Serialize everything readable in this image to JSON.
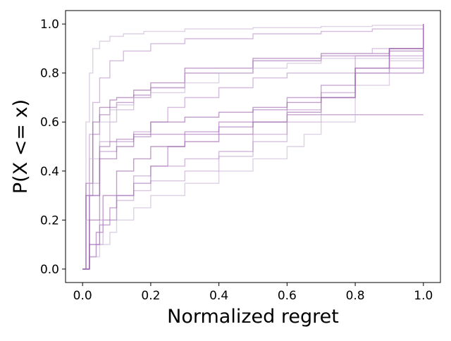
{
  "chart_data": {
    "type": "line",
    "title": "",
    "xlabel": "Normalized regret",
    "ylabel": "P(X <= x)",
    "xlim": [
      -0.05,
      1.05
    ],
    "ylim": [
      -0.055,
      1.055
    ],
    "xticks": [
      {
        "value": 0.0,
        "label": "0.0"
      },
      {
        "value": 0.2,
        "label": "0.2"
      },
      {
        "value": 0.4,
        "label": "0.4"
      },
      {
        "value": 0.6,
        "label": "0.6"
      },
      {
        "value": 0.8,
        "label": "0.8"
      },
      {
        "value": 1.0,
        "label": "1.0"
      }
    ],
    "yticks": [
      {
        "value": 0.0,
        "label": "0.0"
      },
      {
        "value": 0.2,
        "label": "0.2"
      },
      {
        "value": 0.4,
        "label": "0.4"
      },
      {
        "value": 0.6,
        "label": "0.6"
      },
      {
        "value": 0.8,
        "label": "0.8"
      },
      {
        "value": 1.0,
        "label": "1.0"
      }
    ],
    "grid": false,
    "legend": "none",
    "line_style": "step",
    "series_colors": [
      "#c8b4d4",
      "#b98fc9",
      "#a46bb8",
      "#9a5fa9",
      "#c0a0cc"
    ],
    "series": [
      {
        "x": [
          0.0,
          0.01,
          0.02,
          0.03,
          0.05,
          0.08,
          0.12,
          0.18,
          0.3,
          0.5,
          0.7,
          0.85,
          1.0
        ],
        "values": [
          0.0,
          0.6,
          0.8,
          0.9,
          0.93,
          0.95,
          0.96,
          0.97,
          0.98,
          0.985,
          0.99,
          0.995,
          1.0
        ]
      },
      {
        "x": [
          0.0,
          0.01,
          0.02,
          0.03,
          0.05,
          0.08,
          0.12,
          0.2,
          0.3,
          0.5,
          0.7,
          0.85,
          1.0
        ],
        "values": [
          0.0,
          0.3,
          0.55,
          0.68,
          0.78,
          0.85,
          0.89,
          0.92,
          0.94,
          0.96,
          0.97,
          0.98,
          1.0
        ]
      },
      {
        "x": [
          0.0,
          0.01,
          0.03,
          0.05,
          0.08,
          0.1,
          0.15,
          0.2,
          0.3,
          0.5,
          0.7,
          0.9,
          1.0
        ],
        "values": [
          0.0,
          0.3,
          0.55,
          0.63,
          0.66,
          0.68,
          0.71,
          0.74,
          0.8,
          0.85,
          0.87,
          0.9,
          1.0
        ]
      },
      {
        "x": [
          0.0,
          0.01,
          0.03,
          0.05,
          0.08,
          0.1,
          0.15,
          0.2,
          0.3,
          0.5,
          0.7,
          0.9,
          1.0
        ],
        "values": [
          0.0,
          0.35,
          0.6,
          0.66,
          0.69,
          0.7,
          0.73,
          0.76,
          0.82,
          0.86,
          0.88,
          0.89,
          1.0
        ]
      },
      {
        "x": [
          0.0,
          0.01,
          0.02,
          0.05,
          0.08,
          0.1,
          0.15,
          0.2,
          0.3,
          0.5,
          0.7,
          0.85,
          1.0
        ],
        "values": [
          0.0,
          0.2,
          0.35,
          0.52,
          0.6,
          0.65,
          0.7,
          0.74,
          0.8,
          0.85,
          0.88,
          0.9,
          1.0
        ]
      },
      {
        "x": [
          0.0,
          0.02,
          0.05,
          0.08,
          0.1,
          0.15,
          0.2,
          0.3,
          0.4,
          0.5,
          0.6,
          0.7,
          1.0
        ],
        "values": [
          0.0,
          0.45,
          0.6,
          0.65,
          0.67,
          0.7,
          0.72,
          0.76,
          0.8,
          0.82,
          0.84,
          0.86,
          1.0
        ]
      },
      {
        "x": [
          0.0,
          0.02,
          0.05,
          0.1,
          0.15,
          0.2,
          0.25,
          0.3,
          0.4,
          0.5,
          0.6,
          0.8,
          1.0
        ],
        "values": [
          0.0,
          0.3,
          0.48,
          0.52,
          0.56,
          0.6,
          0.66,
          0.7,
          0.74,
          0.78,
          0.8,
          0.87,
          1.0
        ]
      },
      {
        "x": [
          0.0,
          0.02,
          0.05,
          0.08,
          0.1,
          0.15,
          0.2,
          0.3,
          0.4,
          0.5,
          0.6,
          1.0
        ],
        "values": [
          0.0,
          0.3,
          0.5,
          0.52,
          0.53,
          0.54,
          0.55,
          0.56,
          0.58,
          0.6,
          0.63,
          0.63
        ]
      },
      {
        "x": [
          0.0,
          0.02,
          0.04,
          0.06,
          0.1,
          0.15,
          0.2,
          0.3,
          0.4,
          0.5,
          0.6,
          0.7,
          0.8,
          0.9,
          1.0
        ],
        "values": [
          0.0,
          0.05,
          0.15,
          0.3,
          0.4,
          0.45,
          0.5,
          0.52,
          0.55,
          0.6,
          0.64,
          0.7,
          0.8,
          0.9,
          1.0
        ]
      },
      {
        "x": [
          0.0,
          0.02,
          0.04,
          0.06,
          0.1,
          0.15,
          0.2,
          0.3,
          0.4,
          0.5,
          0.6,
          0.7,
          0.8,
          1.0
        ],
        "values": [
          0.0,
          0.05,
          0.1,
          0.2,
          0.28,
          0.32,
          0.36,
          0.4,
          0.46,
          0.52,
          0.6,
          0.7,
          0.8,
          1.0
        ]
      },
      {
        "x": [
          0.0,
          0.02,
          0.05,
          0.08,
          0.1,
          0.15,
          0.2,
          0.3,
          0.4,
          0.5,
          0.6,
          0.65,
          0.7,
          0.8,
          0.9,
          1.0
        ],
        "values": [
          0.0,
          0.05,
          0.1,
          0.15,
          0.2,
          0.25,
          0.3,
          0.35,
          0.4,
          0.45,
          0.5,
          0.55,
          0.6,
          0.75,
          0.85,
          1.0
        ]
      },
      {
        "x": [
          0.0,
          0.02,
          0.05,
          0.1,
          0.15,
          0.2,
          0.3,
          0.4,
          0.5,
          0.6,
          0.7,
          0.8,
          1.0
        ],
        "values": [
          0.0,
          0.1,
          0.2,
          0.3,
          0.38,
          0.42,
          0.45,
          0.48,
          0.55,
          0.65,
          0.72,
          0.8,
          1.0
        ]
      },
      {
        "x": [
          0.0,
          0.02,
          0.05,
          0.08,
          0.1,
          0.15,
          0.2,
          0.25,
          0.3,
          0.4,
          0.5,
          0.6,
          0.7,
          0.8,
          1.0
        ],
        "values": [
          0.0,
          0.1,
          0.18,
          0.25,
          0.3,
          0.35,
          0.42,
          0.5,
          0.55,
          0.6,
          0.65,
          0.7,
          0.75,
          0.82,
          1.0
        ]
      },
      {
        "x": [
          0.0,
          0.02,
          0.05,
          0.1,
          0.15,
          0.2,
          0.3,
          0.4,
          0.5,
          0.6,
          0.7,
          0.8,
          0.9,
          1.0
        ],
        "values": [
          0.0,
          0.2,
          0.45,
          0.5,
          0.55,
          0.6,
          0.62,
          0.64,
          0.66,
          0.68,
          0.7,
          0.82,
          0.9,
          1.0
        ]
      }
    ]
  }
}
